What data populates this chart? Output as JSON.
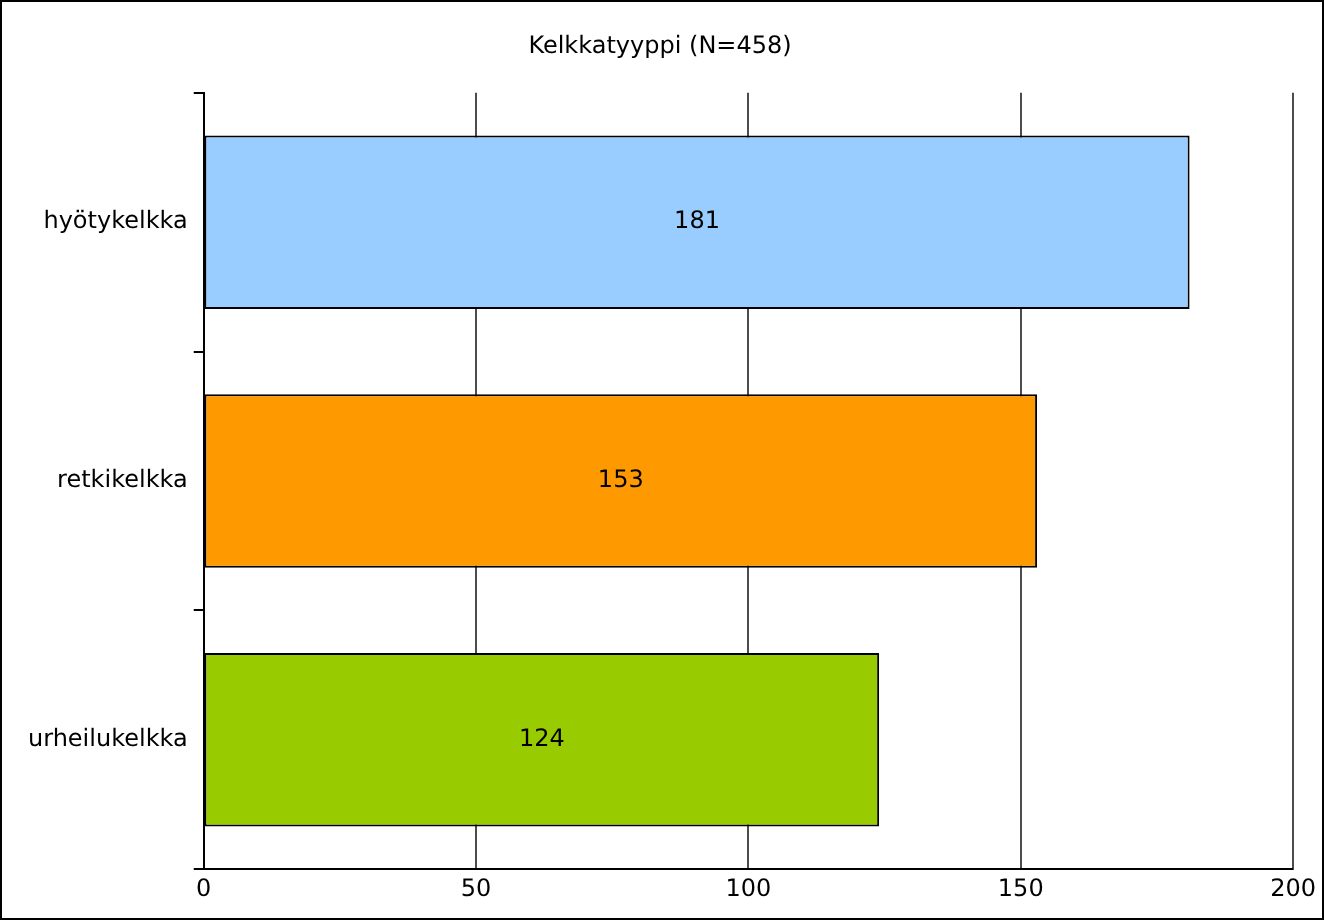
{
  "chart_data": {
    "type": "bar",
    "orientation": "horizontal",
    "title": "Kelkkatyyppi (N=458)",
    "categories": [
      "hyötykelkka",
      "retkikelkka",
      "urheilukelkka"
    ],
    "values": [
      181,
      153,
      124
    ],
    "colors": [
      "#99ccff",
      "#ff9900",
      "#99cc00"
    ],
    "xlim": [
      0,
      200
    ],
    "xticks": [
      0,
      50,
      100,
      150,
      200
    ],
    "grid": "x",
    "legend": false,
    "data_labels": true
  }
}
